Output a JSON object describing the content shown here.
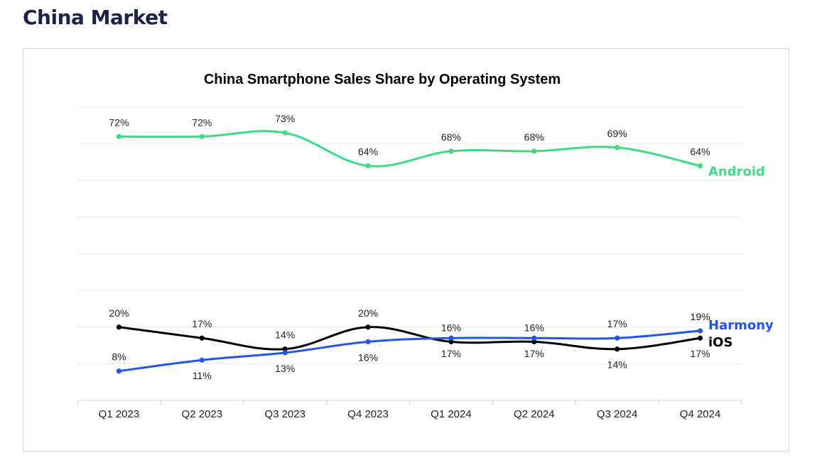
{
  "page": {
    "heading": "China Market"
  },
  "chart_data": {
    "type": "line",
    "title": "China Smartphone Sales Share by Operating System",
    "xlabel": "",
    "ylabel": "",
    "categories": [
      "Q1 2023",
      "Q2 2023",
      "Q3 2023",
      "Q4 2023",
      "Q1 2024",
      "Q2 2024",
      "Q3 2024",
      "Q4 2024"
    ],
    "ylim": [
      0,
      80
    ],
    "grid": true,
    "series": [
      {
        "name": "Android",
        "color": "#3ddc84",
        "values": [
          72,
          72,
          73,
          64,
          68,
          68,
          69,
          64
        ],
        "labels": [
          "72%",
          "72%",
          "73%",
          "64%",
          "68%",
          "68%",
          "69%",
          "64%"
        ]
      },
      {
        "name": "Harmony",
        "color": "#2255ee",
        "values": [
          8,
          11,
          13,
          16,
          17,
          17,
          17,
          19
        ],
        "labels": [
          "8%",
          "11%",
          "13%",
          "16%",
          "17%",
          "17%",
          "17%",
          "19%"
        ]
      },
      {
        "name": "iOS",
        "color": "#000000",
        "values": [
          20,
          17,
          14,
          20,
          16,
          16,
          14,
          17
        ],
        "labels": [
          "20%",
          "17%",
          "14%",
          "20%",
          "16%",
          "16%",
          "14%",
          "17%"
        ]
      }
    ]
  }
}
